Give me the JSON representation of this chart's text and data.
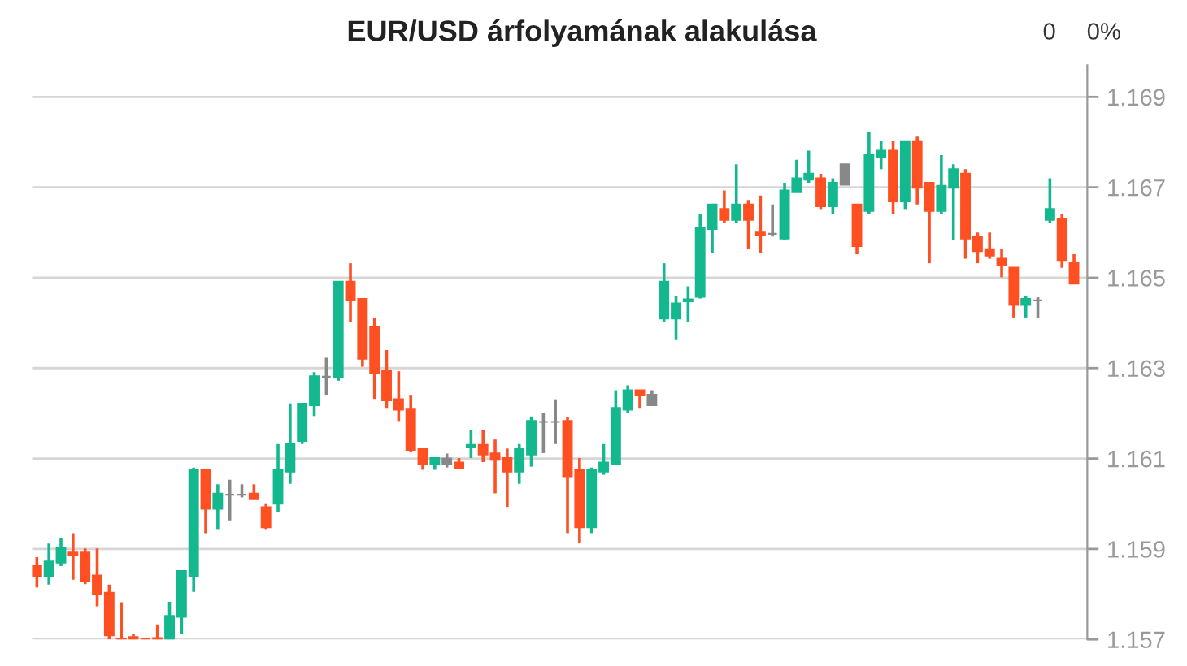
{
  "chart_data": {
    "type": "candlestick",
    "title": "EUR/USD árfolyamának alakulása",
    "annotations": [
      "0",
      "0%"
    ],
    "categories": [
      null,
      null,
      null,
      null,
      null,
      null,
      null,
      null,
      null,
      null,
      null,
      null,
      null,
      null,
      null,
      null,
      null,
      null,
      null,
      null,
      null,
      null,
      null,
      null,
      null,
      null,
      null,
      null,
      null,
      null,
      null,
      null,
      null,
      null,
      null,
      null,
      null,
      null,
      null,
      null,
      null,
      null,
      null,
      null,
      null,
      null,
      null,
      null,
      null,
      null,
      null,
      null,
      null,
      null,
      null,
      null,
      null,
      null,
      null,
      null,
      null,
      null,
      null,
      null,
      null,
      null,
      null,
      null,
      null,
      null,
      null,
      null,
      null,
      null,
      null,
      null,
      null,
      null,
      null,
      null,
      null,
      null,
      null,
      null,
      null,
      null,
      null
    ],
    "ohlc": [
      [
        1.15862,
        1.15882,
        1.15815,
        1.15839
      ],
      [
        1.15839,
        1.15912,
        1.15821,
        1.15872
      ],
      [
        1.1587,
        1.15923,
        1.15862,
        1.15903
      ],
      [
        1.15892,
        1.15935,
        1.15832,
        1.15887
      ],
      [
        1.15892,
        1.15901,
        1.15822,
        1.15829
      ],
      [
        1.15841,
        1.15901,
        1.15773,
        1.15801
      ],
      [
        1.15803,
        1.15821,
        1.157,
        1.15709
      ],
      [
        1.15702,
        1.15782,
        1.157,
        1.157
      ],
      [
        1.15705,
        1.15712,
        1.157,
        1.157
      ],
      [
        1.157,
        1.157,
        1.157,
        1.157
      ],
      [
        1.15703,
        1.15733,
        1.157,
        1.157
      ],
      [
        1.157,
        1.15783,
        1.157,
        1.15752
      ],
      [
        1.1575,
        1.15851,
        1.15712,
        1.15851
      ],
      [
        1.15839,
        1.1608,
        1.15805,
        1.16074
      ],
      [
        1.16074,
        1.16074,
        1.15935,
        1.15989
      ],
      [
        1.15989,
        1.16043,
        1.15944,
        1.16022
      ],
      [
        1.1602,
        1.16053,
        1.15963,
        1.1602
      ],
      [
        1.1602,
        1.16043,
        1.16014,
        1.1602
      ],
      [
        1.16022,
        1.16043,
        1.1601,
        1.1601
      ],
      [
        1.15992,
        1.16001,
        1.15944,
        1.15948
      ],
      [
        1.16,
        1.16132,
        1.15982,
        1.16074
      ],
      [
        1.16071,
        1.16222,
        1.16044,
        1.16132
      ],
      [
        1.16139,
        1.16221,
        1.16132,
        1.16221
      ],
      [
        1.16218,
        1.16291,
        1.16194,
        1.16282
      ],
      [
        1.16281,
        1.16323,
        1.16241,
        1.16281
      ],
      [
        1.1628,
        1.16491,
        1.16272,
        1.16491
      ],
      [
        1.16491,
        1.16532,
        1.16402,
        1.16451
      ],
      [
        1.16453,
        1.16453,
        1.16303,
        1.16321
      ],
      [
        1.16392,
        1.16412,
        1.16232,
        1.1629
      ],
      [
        1.16293,
        1.1634,
        1.16212,
        1.16229
      ],
      [
        1.16231,
        1.16293,
        1.16183,
        1.16208
      ],
      [
        1.1621,
        1.16241,
        1.16115,
        1.16119
      ],
      [
        1.16122,
        1.16122,
        1.16075,
        1.16088
      ],
      [
        1.16088,
        1.16101,
        1.16075,
        1.16101
      ],
      [
        1.161,
        1.16111,
        1.1608,
        1.16088
      ],
      [
        1.16091,
        1.16101,
        1.16078,
        1.16078
      ],
      [
        1.16126,
        1.16163,
        1.16101,
        1.1613
      ],
      [
        1.1613,
        1.16163,
        1.16092,
        1.16109
      ],
      [
        1.16111,
        1.16142,
        1.16023,
        1.16099
      ],
      [
        1.16101,
        1.16122,
        1.15993,
        1.16071
      ],
      [
        1.16071,
        1.16132,
        1.16044,
        1.16122
      ],
      [
        1.16109,
        1.16193,
        1.16082,
        1.16183
      ],
      [
        1.16181,
        1.162,
        1.16112,
        1.16181
      ],
      [
        1.16181,
        1.16231,
        1.16132,
        1.16181
      ],
      [
        1.16183,
        1.16192,
        1.15935,
        1.16061
      ],
      [
        1.16074,
        1.16101,
        1.15914,
        1.15948
      ],
      [
        1.15948,
        1.1608,
        1.15935,
        1.16074
      ],
      [
        1.16071,
        1.16132,
        1.16064,
        1.16091
      ],
      [
        1.16088,
        1.16251,
        1.16088,
        1.16212
      ],
      [
        1.16208,
        1.16262,
        1.16201,
        1.16251
      ],
      [
        1.16251,
        1.16251,
        1.16212,
        1.1624
      ],
      [
        1.16241,
        1.16251,
        1.16218,
        1.16218
      ],
      [
        1.1641,
        1.16532,
        1.16403,
        1.16491
      ],
      [
        1.1641,
        1.1646,
        1.16362,
        1.16443
      ],
      [
        1.16448,
        1.16481,
        1.16403,
        1.16452
      ],
      [
        1.16458,
        1.16641,
        1.16454,
        1.16611
      ],
      [
        1.16608,
        1.16662,
        1.16554,
        1.16662
      ],
      [
        1.16652,
        1.16693,
        1.16621,
        1.16628
      ],
      [
        1.16628,
        1.16751,
        1.16621,
        1.16662
      ],
      [
        1.16662,
        1.16672,
        1.16564,
        1.16628
      ],
      [
        1.166,
        1.16682,
        1.16554,
        1.16595
      ],
      [
        1.16597,
        1.16662,
        1.16591,
        1.16597
      ],
      [
        1.16587,
        1.1671,
        1.16583,
        1.16693
      ],
      [
        1.16689,
        1.16761,
        1.16689,
        1.1672
      ],
      [
        1.16717,
        1.16781,
        1.1671,
        1.1673
      ],
      [
        1.1672,
        1.1673,
        1.16652,
        1.16658
      ],
      [
        1.16658,
        1.1672,
        1.16641,
        1.1671
      ],
      [
        1.16751,
        1.16751,
        1.16706,
        1.16706
      ],
      [
        1.16662,
        1.16662,
        1.16552,
        1.1657
      ],
      [
        1.16648,
        1.16823,
        1.16641,
        1.16771
      ],
      [
        1.16768,
        1.16802,
        1.1674,
        1.16781
      ],
      [
        1.16781,
        1.16802,
        1.16641,
        1.16669
      ],
      [
        1.16669,
        1.16802,
        1.16652,
        1.16802
      ],
      [
        1.16802,
        1.16812,
        1.16662,
        1.16699
      ],
      [
        1.1671,
        1.1671,
        1.16532,
        1.16648
      ],
      [
        1.16648,
        1.16771,
        1.16641,
        1.16703
      ],
      [
        1.16699,
        1.16751,
        1.16583,
        1.1674
      ],
      [
        1.1673,
        1.1674,
        1.16542,
        1.16587
      ],
      [
        1.1659,
        1.166,
        1.16532,
        1.16559
      ],
      [
        1.16563,
        1.166,
        1.16542,
        1.16549
      ],
      [
        1.16542,
        1.16563,
        1.16501,
        1.16528
      ],
      [
        1.16522,
        1.16522,
        1.16412,
        1.1644
      ],
      [
        1.1644,
        1.1646,
        1.16412,
        1.16453
      ],
      [
        1.1645,
        1.16457,
        1.16412,
        1.1645
      ],
      [
        1.16628,
        1.1672,
        1.16621,
        1.16652
      ],
      [
        1.16631,
        1.16641,
        1.16522,
        1.16539
      ],
      [
        1.16532,
        1.16552,
        1.16487,
        1.16487
      ]
    ],
    "colors": [
      "#ff5023",
      "#14b88f",
      "#14b88f",
      "#ff5023",
      "#ff5023",
      "#ff5023",
      "#ff5023",
      "#ff5023",
      "#ff5023",
      "#ff5023",
      "#ff5023",
      "#14b88f",
      "#14b88f",
      "#14b88f",
      "#ff5023",
      "#14b88f",
      "#888888",
      "#888888",
      "#ff5023",
      "#ff5023",
      "#14b88f",
      "#14b88f",
      "#14b88f",
      "#14b88f",
      "#888888",
      "#14b88f",
      "#ff5023",
      "#ff5023",
      "#ff5023",
      "#ff5023",
      "#ff5023",
      "#ff5023",
      "#ff5023",
      "#14b88f",
      "#888888",
      "#ff5023",
      "#14b88f",
      "#ff5023",
      "#ff5023",
      "#ff5023",
      "#14b88f",
      "#14b88f",
      "#888888",
      "#888888",
      "#ff5023",
      "#ff5023",
      "#14b88f",
      "#14b88f",
      "#14b88f",
      "#14b88f",
      "#ff5023",
      "#888888",
      "#14b88f",
      "#14b88f",
      "#14b88f",
      "#14b88f",
      "#14b88f",
      "#ff5023",
      "#14b88f",
      "#ff5023",
      "#ff5023",
      "#888888",
      "#14b88f",
      "#14b88f",
      "#14b88f",
      "#ff5023",
      "#14b88f",
      "#888888",
      "#ff5023",
      "#14b88f",
      "#14b88f",
      "#ff5023",
      "#14b88f",
      "#ff5023",
      "#ff5023",
      "#14b88f",
      "#14b88f",
      "#ff5023",
      "#ff5023",
      "#ff5023",
      "#ff5023",
      "#ff5023",
      "#14b88f",
      "#888888",
      "#14b88f",
      "#ff5023",
      "#ff5023"
    ],
    "ylim": [
      1.157,
      1.1697
    ],
    "yticks": [
      1.157,
      1.159,
      1.161,
      1.163,
      1.165,
      1.167,
      1.169
    ],
    "grid": "y",
    "tick_labels": "y"
  }
}
